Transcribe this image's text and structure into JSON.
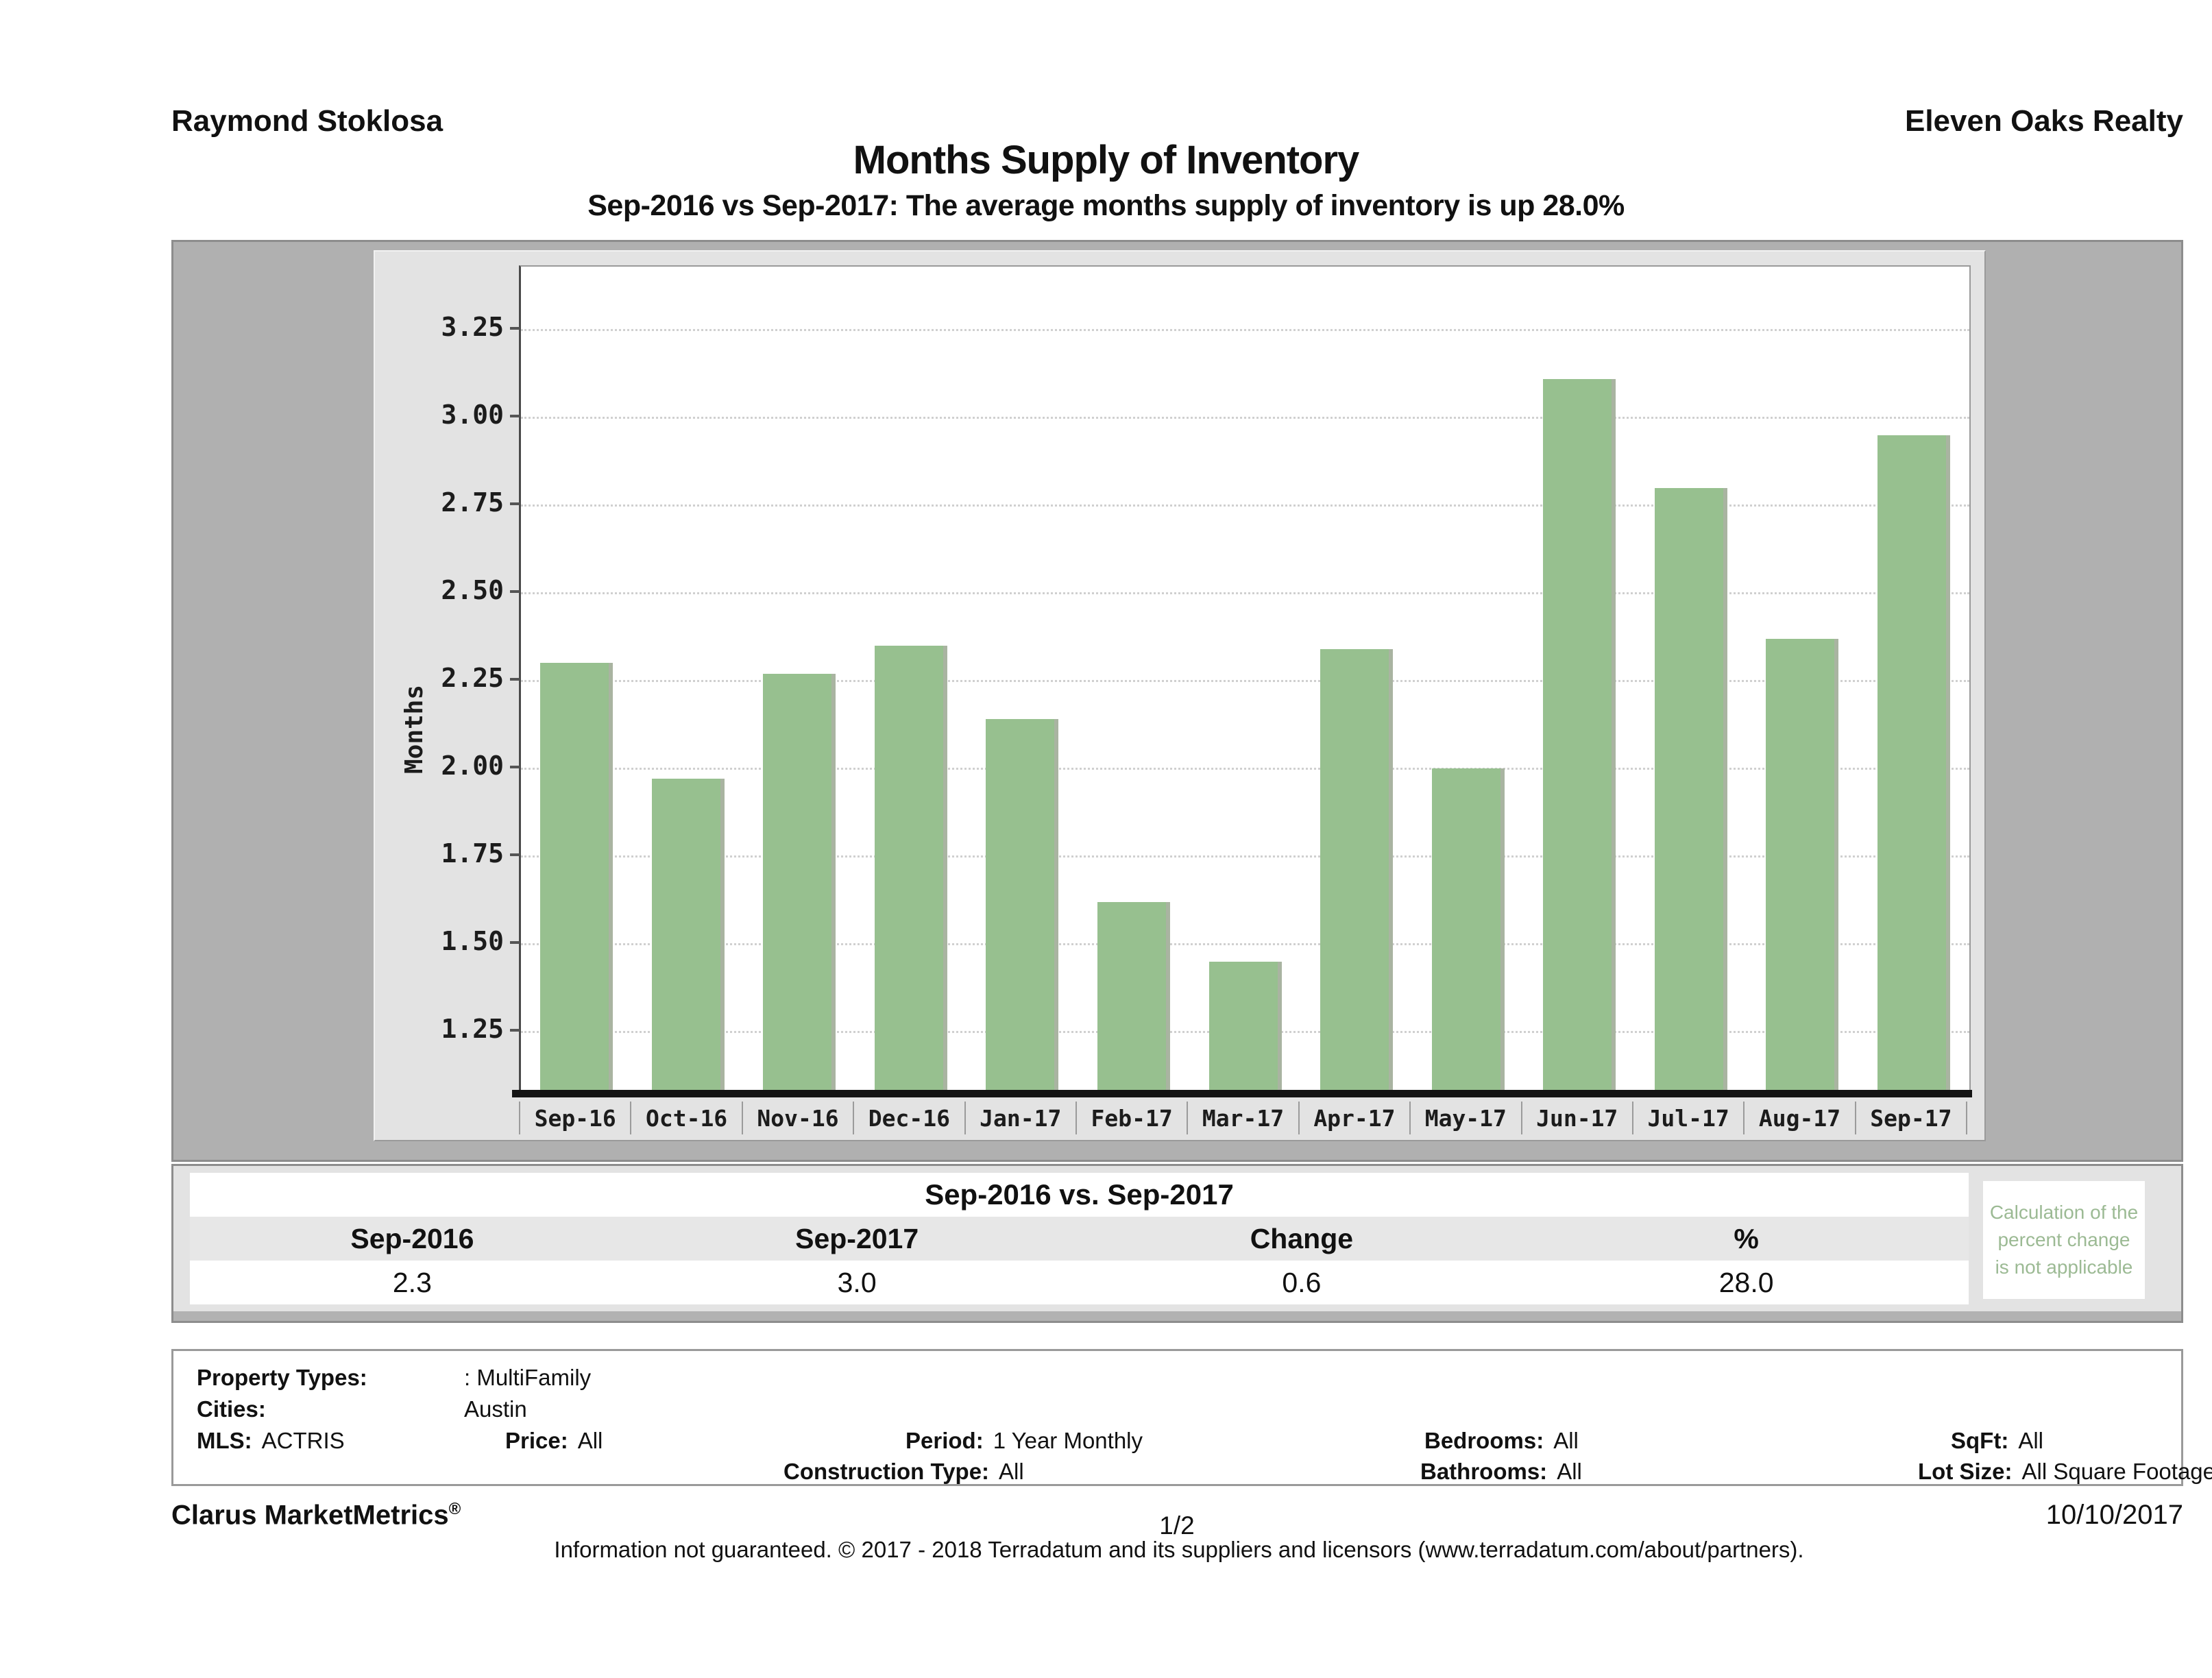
{
  "header": {
    "agent_name": "Raymond Stoklosa",
    "company": "Eleven Oaks Realty",
    "title": "Months Supply of Inventory",
    "subtitle": "Sep-2016 vs Sep-2017: The average months supply of inventory is up 28.0%"
  },
  "chart_data": {
    "type": "bar",
    "title": "Months Supply of Inventory",
    "xlabel": "",
    "ylabel": "Months",
    "categories": [
      "Sep-16",
      "Oct-16",
      "Nov-16",
      "Dec-16",
      "Jan-17",
      "Feb-17",
      "Mar-17",
      "Apr-17",
      "May-17",
      "Jun-17",
      "Jul-17",
      "Aug-17",
      "Sep-17"
    ],
    "values": [
      2.3,
      1.97,
      2.27,
      2.35,
      2.14,
      1.62,
      1.45,
      2.34,
      2.0,
      3.11,
      2.8,
      2.37,
      2.95
    ],
    "yticks": [
      3.25,
      3.0,
      2.75,
      2.5,
      2.25,
      2.0,
      1.75,
      1.5,
      1.25
    ],
    "ylim": [
      1.08,
      3.43
    ],
    "grid": "dotted-horizontal",
    "legend": "none",
    "bar_color": "#97c08f",
    "bar_edge_color": "#a9b4a1"
  },
  "comparison": {
    "title": "Sep-2016 vs. Sep-2017",
    "columns": [
      "Sep-2016",
      "Sep-2017",
      "Change",
      "%"
    ],
    "values": [
      "2.3",
      "3.0",
      "0.6",
      "28.0"
    ],
    "note": "Calculation of the\npercent change\nis not applicable",
    "note_color": "#9cba94"
  },
  "filters": {
    "items": [
      {
        "label": "Property Types:",
        "value": ": MultiFamily"
      },
      {
        "label": "Cities:",
        "value": "Austin"
      },
      {
        "label": "MLS:",
        "value": "ACTRIS"
      },
      {
        "label": "Price:",
        "value": "All"
      },
      {
        "label": "Period:",
        "value": "1 Year Monthly"
      },
      {
        "label": "Bedrooms:",
        "value": "All"
      },
      {
        "label": "SqFt:",
        "value": "All"
      },
      {
        "label": "Construction Type:",
        "value": "All"
      },
      {
        "label": "Bathrooms:",
        "value": "All"
      },
      {
        "label": "Lot Size:",
        "value": "All Square Footage"
      }
    ]
  },
  "footer": {
    "brand": "Clarus MarketMetrics",
    "brand_reg": "®",
    "page_number": "1/2",
    "date": "10/10/2017",
    "disclaimer": "Information not guaranteed. © 2017 - 2018 Terradatum and its suppliers and licensors (www.terradatum.com/about/partners)."
  }
}
